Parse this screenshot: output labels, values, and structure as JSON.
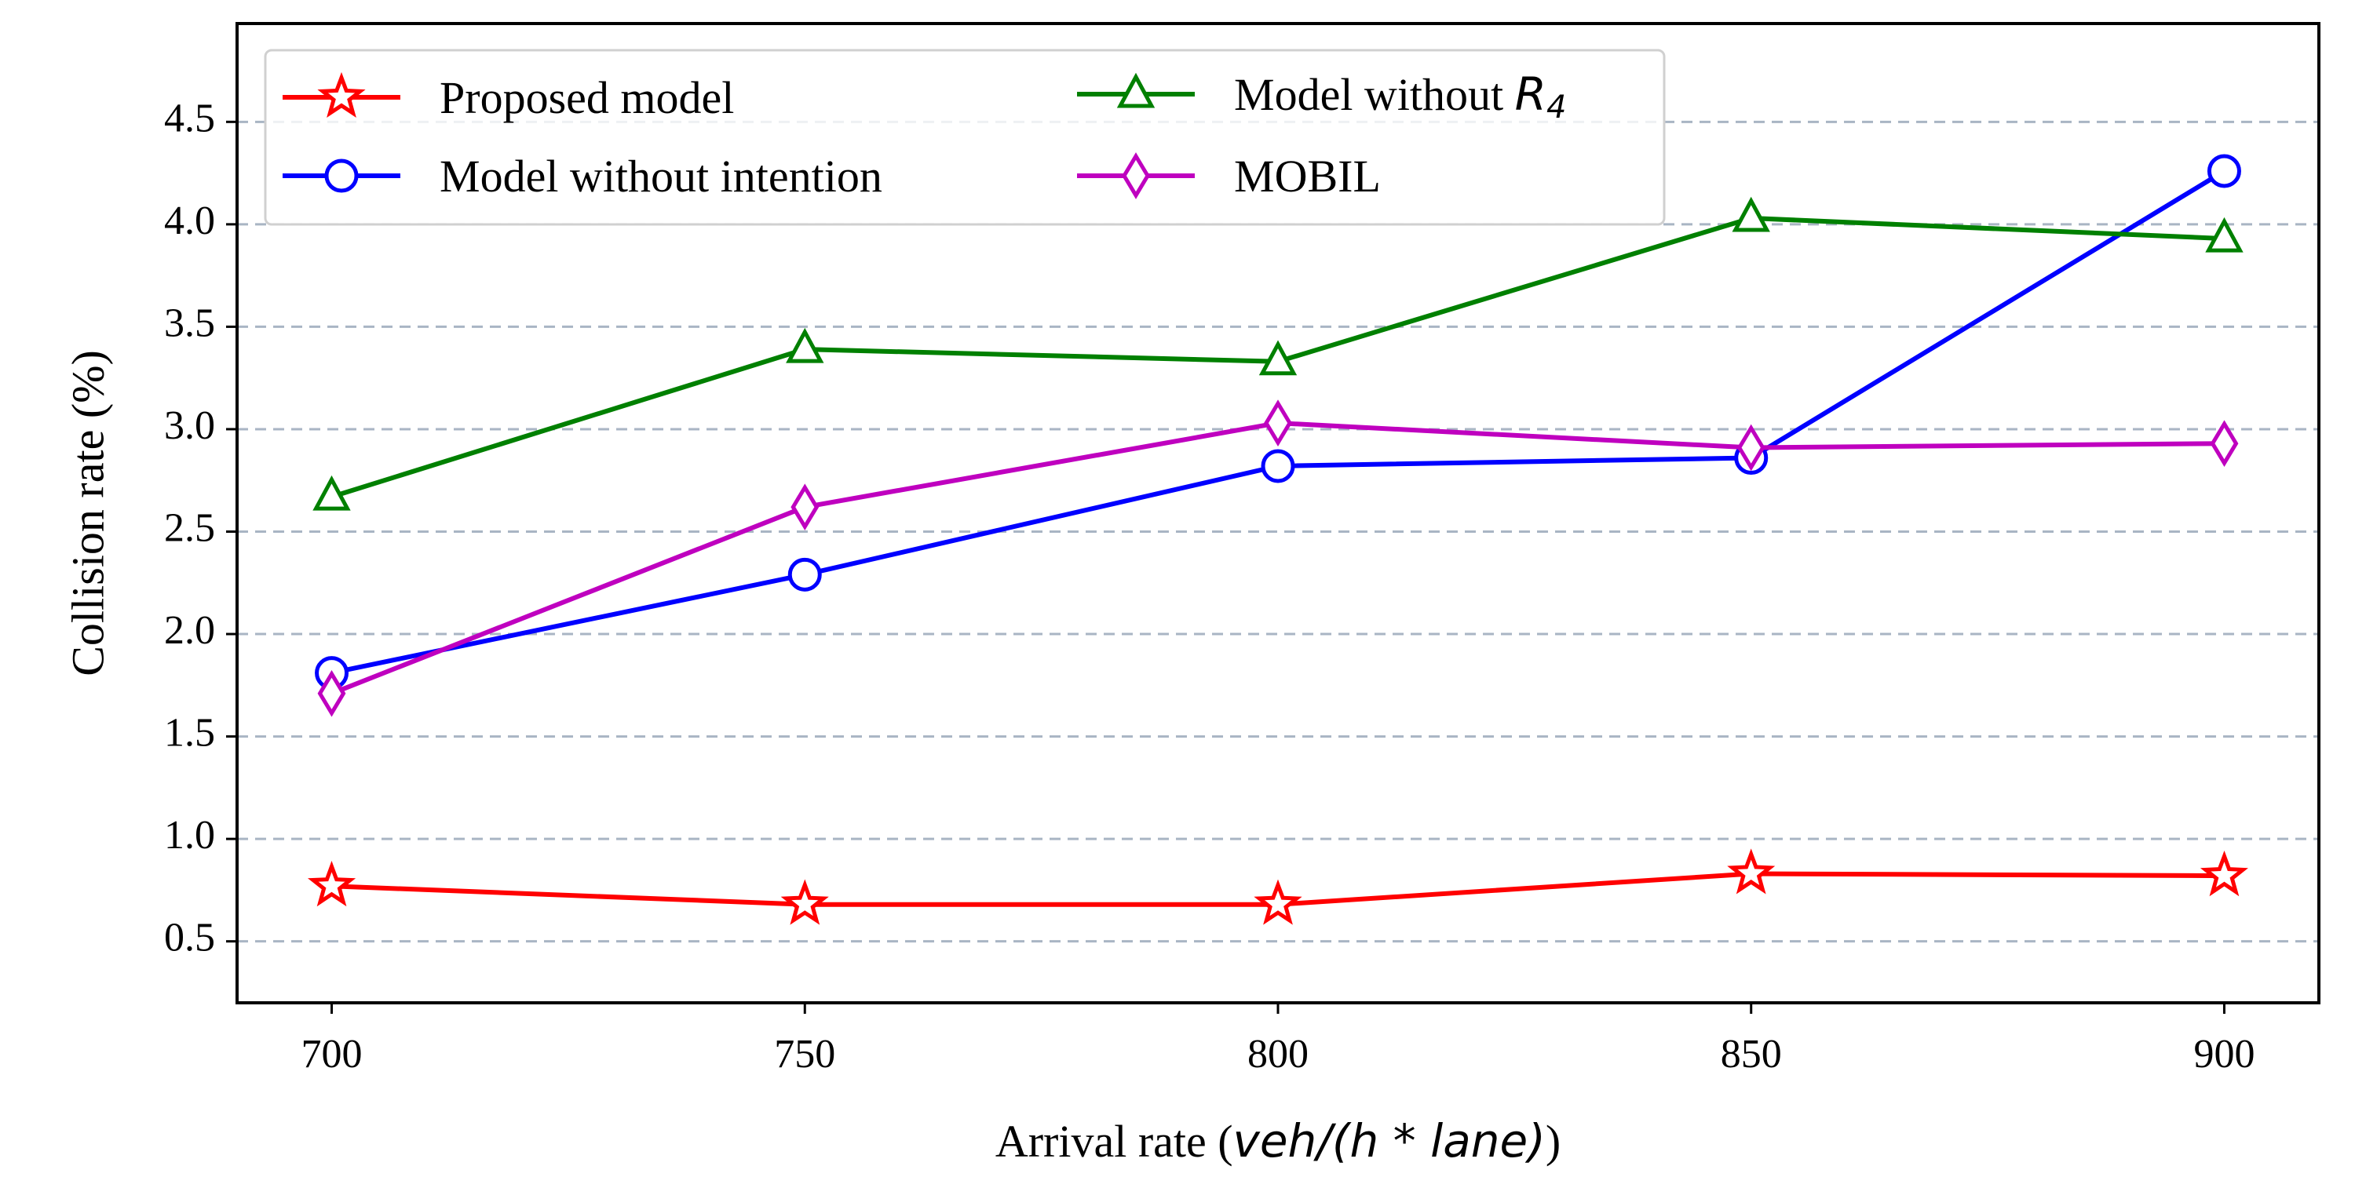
{
  "chart_data": {
    "type": "line",
    "title": "",
    "xlabel": "Arrival rate (",
    "xlabel_math": "veh/(h * lane)",
    "xlabel_close": ")",
    "ylabel": "Collision rate (%)",
    "x": [
      700,
      750,
      800,
      850,
      900
    ],
    "x_ticks": [
      "700",
      "750",
      "800",
      "850",
      "900"
    ],
    "xlim": [
      690,
      910
    ],
    "y_ticks": [
      "0.5",
      "1.0",
      "1.5",
      "2.0",
      "2.5",
      "3.0",
      "3.5",
      "4.0",
      "4.5"
    ],
    "ylim": [
      0.2,
      4.98
    ],
    "grid": "horizontal dashed",
    "legend_position": "top-left",
    "series": [
      {
        "name": "Proposed model",
        "color": "#ff0000",
        "marker": "star",
        "values": [
          0.77,
          0.68,
          0.68,
          0.83,
          0.82
        ]
      },
      {
        "name": "Model without intention",
        "color": "#0000ff",
        "marker": "circle",
        "values": [
          1.81,
          2.29,
          2.82,
          2.86,
          4.26
        ]
      },
      {
        "name": "Model without ",
        "name_math": "R",
        "name_sub": "4",
        "color": "#008000",
        "marker": "triangle",
        "values": [
          2.67,
          3.39,
          3.33,
          4.03,
          3.93
        ]
      },
      {
        "name": "MOBIL",
        "color": "#bf00bf",
        "marker": "diamond",
        "values": [
          1.71,
          2.62,
          3.03,
          2.91,
          2.93
        ]
      }
    ]
  }
}
